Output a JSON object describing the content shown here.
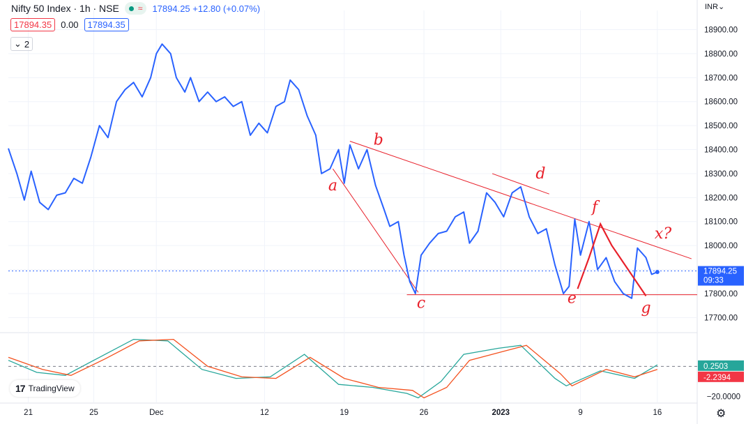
{
  "header": {
    "title": "Nifty 50 Index · 1h · NSE",
    "price_text": "17894.25  +12.80 (+0.07%)",
    "status_icon": "wave-icon"
  },
  "order_row": {
    "sell": "17894.35",
    "spread": "0.00",
    "buy": "17894.35"
  },
  "collapse_label": "2",
  "currency": "INR",
  "watermark": "TradingView",
  "colors": {
    "price_line": "#2962ff",
    "annotation": "#e8202a",
    "osc_fast": "#26a69a",
    "osc_slow": "#f4511e"
  },
  "chart_data": {
    "type": "line",
    "price": {
      "ylim": [
        17640,
        18980
      ],
      "y_ticks": [
        "18900.00",
        "18800.00",
        "18700.00",
        "18600.00",
        "18500.00",
        "18400.00",
        "18300.00",
        "18200.00",
        "18100.00",
        "18000.00",
        "17900.00",
        "17800.00",
        "17700.00"
      ],
      "last_label": "17894.25",
      "countdown": "09:33",
      "last_value": 17894.25,
      "series": [
        {
          "x": 0,
          "y": 18405
        },
        {
          "x": 1.5,
          "y": 18300
        },
        {
          "x": 2.8,
          "y": 18190
        },
        {
          "x": 4,
          "y": 18310
        },
        {
          "x": 5.5,
          "y": 18180
        },
        {
          "x": 7,
          "y": 18150
        },
        {
          "x": 8.5,
          "y": 18210
        },
        {
          "x": 10,
          "y": 18220
        },
        {
          "x": 11.5,
          "y": 18280
        },
        {
          "x": 13,
          "y": 18260
        },
        {
          "x": 14.5,
          "y": 18370
        },
        {
          "x": 16,
          "y": 18500
        },
        {
          "x": 17.5,
          "y": 18450
        },
        {
          "x": 19,
          "y": 18600
        },
        {
          "x": 20.5,
          "y": 18650
        },
        {
          "x": 22,
          "y": 18680
        },
        {
          "x": 23.5,
          "y": 18620
        },
        {
          "x": 25,
          "y": 18700
        },
        {
          "x": 26,
          "y": 18800
        },
        {
          "x": 27,
          "y": 18840
        },
        {
          "x": 28.5,
          "y": 18800
        },
        {
          "x": 29.5,
          "y": 18700
        },
        {
          "x": 31,
          "y": 18640
        },
        {
          "x": 32,
          "y": 18700
        },
        {
          "x": 33.5,
          "y": 18600
        },
        {
          "x": 35,
          "y": 18640
        },
        {
          "x": 36.5,
          "y": 18600
        },
        {
          "x": 38,
          "y": 18620
        },
        {
          "x": 39.5,
          "y": 18580
        },
        {
          "x": 41,
          "y": 18600
        },
        {
          "x": 42.5,
          "y": 18460
        },
        {
          "x": 44,
          "y": 18510
        },
        {
          "x": 45.5,
          "y": 18470
        },
        {
          "x": 47,
          "y": 18580
        },
        {
          "x": 48.5,
          "y": 18600
        },
        {
          "x": 49.5,
          "y": 18690
        },
        {
          "x": 51,
          "y": 18650
        },
        {
          "x": 52.5,
          "y": 18540
        },
        {
          "x": 54,
          "y": 18460
        },
        {
          "x": 55,
          "y": 18300
        },
        {
          "x": 56.5,
          "y": 18320
        },
        {
          "x": 58,
          "y": 18400
        },
        {
          "x": 59,
          "y": 18260
        },
        {
          "x": 60,
          "y": 18420
        },
        {
          "x": 61.5,
          "y": 18320
        },
        {
          "x": 63,
          "y": 18400
        },
        {
          "x": 64.5,
          "y": 18250
        },
        {
          "x": 66,
          "y": 18150
        },
        {
          "x": 67,
          "y": 18080
        },
        {
          "x": 68.5,
          "y": 18100
        },
        {
          "x": 69.5,
          "y": 17960
        },
        {
          "x": 70.5,
          "y": 17850
        },
        {
          "x": 71.5,
          "y": 17800
        },
        {
          "x": 72.5,
          "y": 17960
        },
        {
          "x": 74,
          "y": 18010
        },
        {
          "x": 75.5,
          "y": 18050
        },
        {
          "x": 77,
          "y": 18060
        },
        {
          "x": 78.5,
          "y": 18120
        },
        {
          "x": 80,
          "y": 18140
        },
        {
          "x": 81,
          "y": 18010
        },
        {
          "x": 82.5,
          "y": 18060
        },
        {
          "x": 84,
          "y": 18220
        },
        {
          "x": 85.5,
          "y": 18180
        },
        {
          "x": 87,
          "y": 18120
        },
        {
          "x": 88.5,
          "y": 18220
        },
        {
          "x": 90,
          "y": 18245
        },
        {
          "x": 91.5,
          "y": 18120
        },
        {
          "x": 93,
          "y": 18050
        },
        {
          "x": 94.5,
          "y": 18070
        },
        {
          "x": 96,
          "y": 17920
        },
        {
          "x": 97.5,
          "y": 17800
        },
        {
          "x": 98.5,
          "y": 17830
        },
        {
          "x": 99.5,
          "y": 18110
        },
        {
          "x": 100.5,
          "y": 17960
        },
        {
          "x": 102,
          "y": 18100
        },
        {
          "x": 103.5,
          "y": 17900
        },
        {
          "x": 105,
          "y": 17950
        },
        {
          "x": 106.5,
          "y": 17850
        },
        {
          "x": 108,
          "y": 17800
        },
        {
          "x": 109.5,
          "y": 17780
        },
        {
          "x": 110.5,
          "y": 17990
        },
        {
          "x": 112,
          "y": 17950
        },
        {
          "x": 113,
          "y": 17880
        },
        {
          "x": 114,
          "y": 17890
        }
      ]
    },
    "oscillator": {
      "markers": [
        "0.2503",
        "-2.2394"
      ],
      "tick_label": "−20.0000",
      "fast": [
        {
          "x": 0,
          "y": 4
        },
        {
          "x": 5,
          "y": -4
        },
        {
          "x": 10,
          "y": -6
        },
        {
          "x": 16,
          "y": 6
        },
        {
          "x": 22,
          "y": 18
        },
        {
          "x": 28,
          "y": 17
        },
        {
          "x": 34,
          "y": -2
        },
        {
          "x": 40,
          "y": -8
        },
        {
          "x": 46,
          "y": -7
        },
        {
          "x": 52,
          "y": 8
        },
        {
          "x": 58,
          "y": -12
        },
        {
          "x": 64,
          "y": -14
        },
        {
          "x": 70,
          "y": -18
        },
        {
          "x": 72,
          "y": -21
        },
        {
          "x": 76,
          "y": -10
        },
        {
          "x": 80,
          "y": 8
        },
        {
          "x": 86,
          "y": 12
        },
        {
          "x": 90,
          "y": 14
        },
        {
          "x": 96,
          "y": -8
        },
        {
          "x": 98,
          "y": -13
        },
        {
          "x": 104,
          "y": -3
        },
        {
          "x": 110,
          "y": -8
        },
        {
          "x": 114,
          "y": 1
        }
      ],
      "slow": [
        {
          "x": 0,
          "y": 6
        },
        {
          "x": 6,
          "y": -2
        },
        {
          "x": 11,
          "y": -6
        },
        {
          "x": 17,
          "y": 5
        },
        {
          "x": 23,
          "y": 17
        },
        {
          "x": 29,
          "y": 18
        },
        {
          "x": 35,
          "y": 0
        },
        {
          "x": 41,
          "y": -7
        },
        {
          "x": 47,
          "y": -8
        },
        {
          "x": 53,
          "y": 6
        },
        {
          "x": 59,
          "y": -8
        },
        {
          "x": 65,
          "y": -14
        },
        {
          "x": 71,
          "y": -16
        },
        {
          "x": 73,
          "y": -21
        },
        {
          "x": 77,
          "y": -14
        },
        {
          "x": 81,
          "y": 4
        },
        {
          "x": 87,
          "y": 10
        },
        {
          "x": 91,
          "y": 14
        },
        {
          "x": 97,
          "y": -5
        },
        {
          "x": 99,
          "y": -13
        },
        {
          "x": 105,
          "y": -2
        },
        {
          "x": 110,
          "y": -7
        },
        {
          "x": 114,
          "y": -2
        }
      ]
    },
    "x_ticks": [
      {
        "label": "21",
        "x": 3.5
      },
      {
        "label": "25",
        "x": 15
      },
      {
        "label": "Dec",
        "x": 26
      },
      {
        "label": "12",
        "x": 45
      },
      {
        "label": "19",
        "x": 59
      },
      {
        "label": "26",
        "x": 73
      },
      {
        "label": "2023",
        "x": 86.5
      },
      {
        "label": "9",
        "x": 100.5
      },
      {
        "label": "16",
        "x": 114
      }
    ],
    "annotations": {
      "trendlines": [
        {
          "from": {
            "x": 60,
            "y": 18435
          },
          "to": {
            "x": 120,
            "y": 17945
          }
        },
        {
          "from": {
            "x": 85,
            "y": 18300
          },
          "to": {
            "x": 95,
            "y": 18215
          }
        },
        {
          "from": {
            "x": 57,
            "y": 18320
          },
          "to": {
            "x": 72,
            "y": 17805
          }
        },
        {
          "from": {
            "x": 70,
            "y": 17795
          },
          "to": {
            "x": 121,
            "y": 17795
          }
        }
      ],
      "markup_stroke": [
        {
          "x": 100,
          "y": 17820
        },
        {
          "x": 102,
          "y": 17950
        },
        {
          "x": 104,
          "y": 18090
        },
        {
          "x": 106,
          "y": 18000
        },
        {
          "x": 108,
          "y": 17930
        },
        {
          "x": 110,
          "y": 17860
        },
        {
          "x": 112,
          "y": 17790
        }
      ],
      "labels": [
        {
          "text": "a",
          "x": 57,
          "y": 18230
        },
        {
          "text": "b",
          "x": 65,
          "y": 18420
        },
        {
          "text": "c",
          "x": 72.5,
          "y": 17740
        },
        {
          "text": "d",
          "x": 93.5,
          "y": 18280
        },
        {
          "text": "f",
          "x": 103,
          "y": 18140
        },
        {
          "text": "e",
          "x": 99,
          "y": 17760
        },
        {
          "text": "g",
          "x": 112,
          "y": 17720
        },
        {
          "text": "x?",
          "x": 115,
          "y": 18030
        }
      ]
    }
  }
}
